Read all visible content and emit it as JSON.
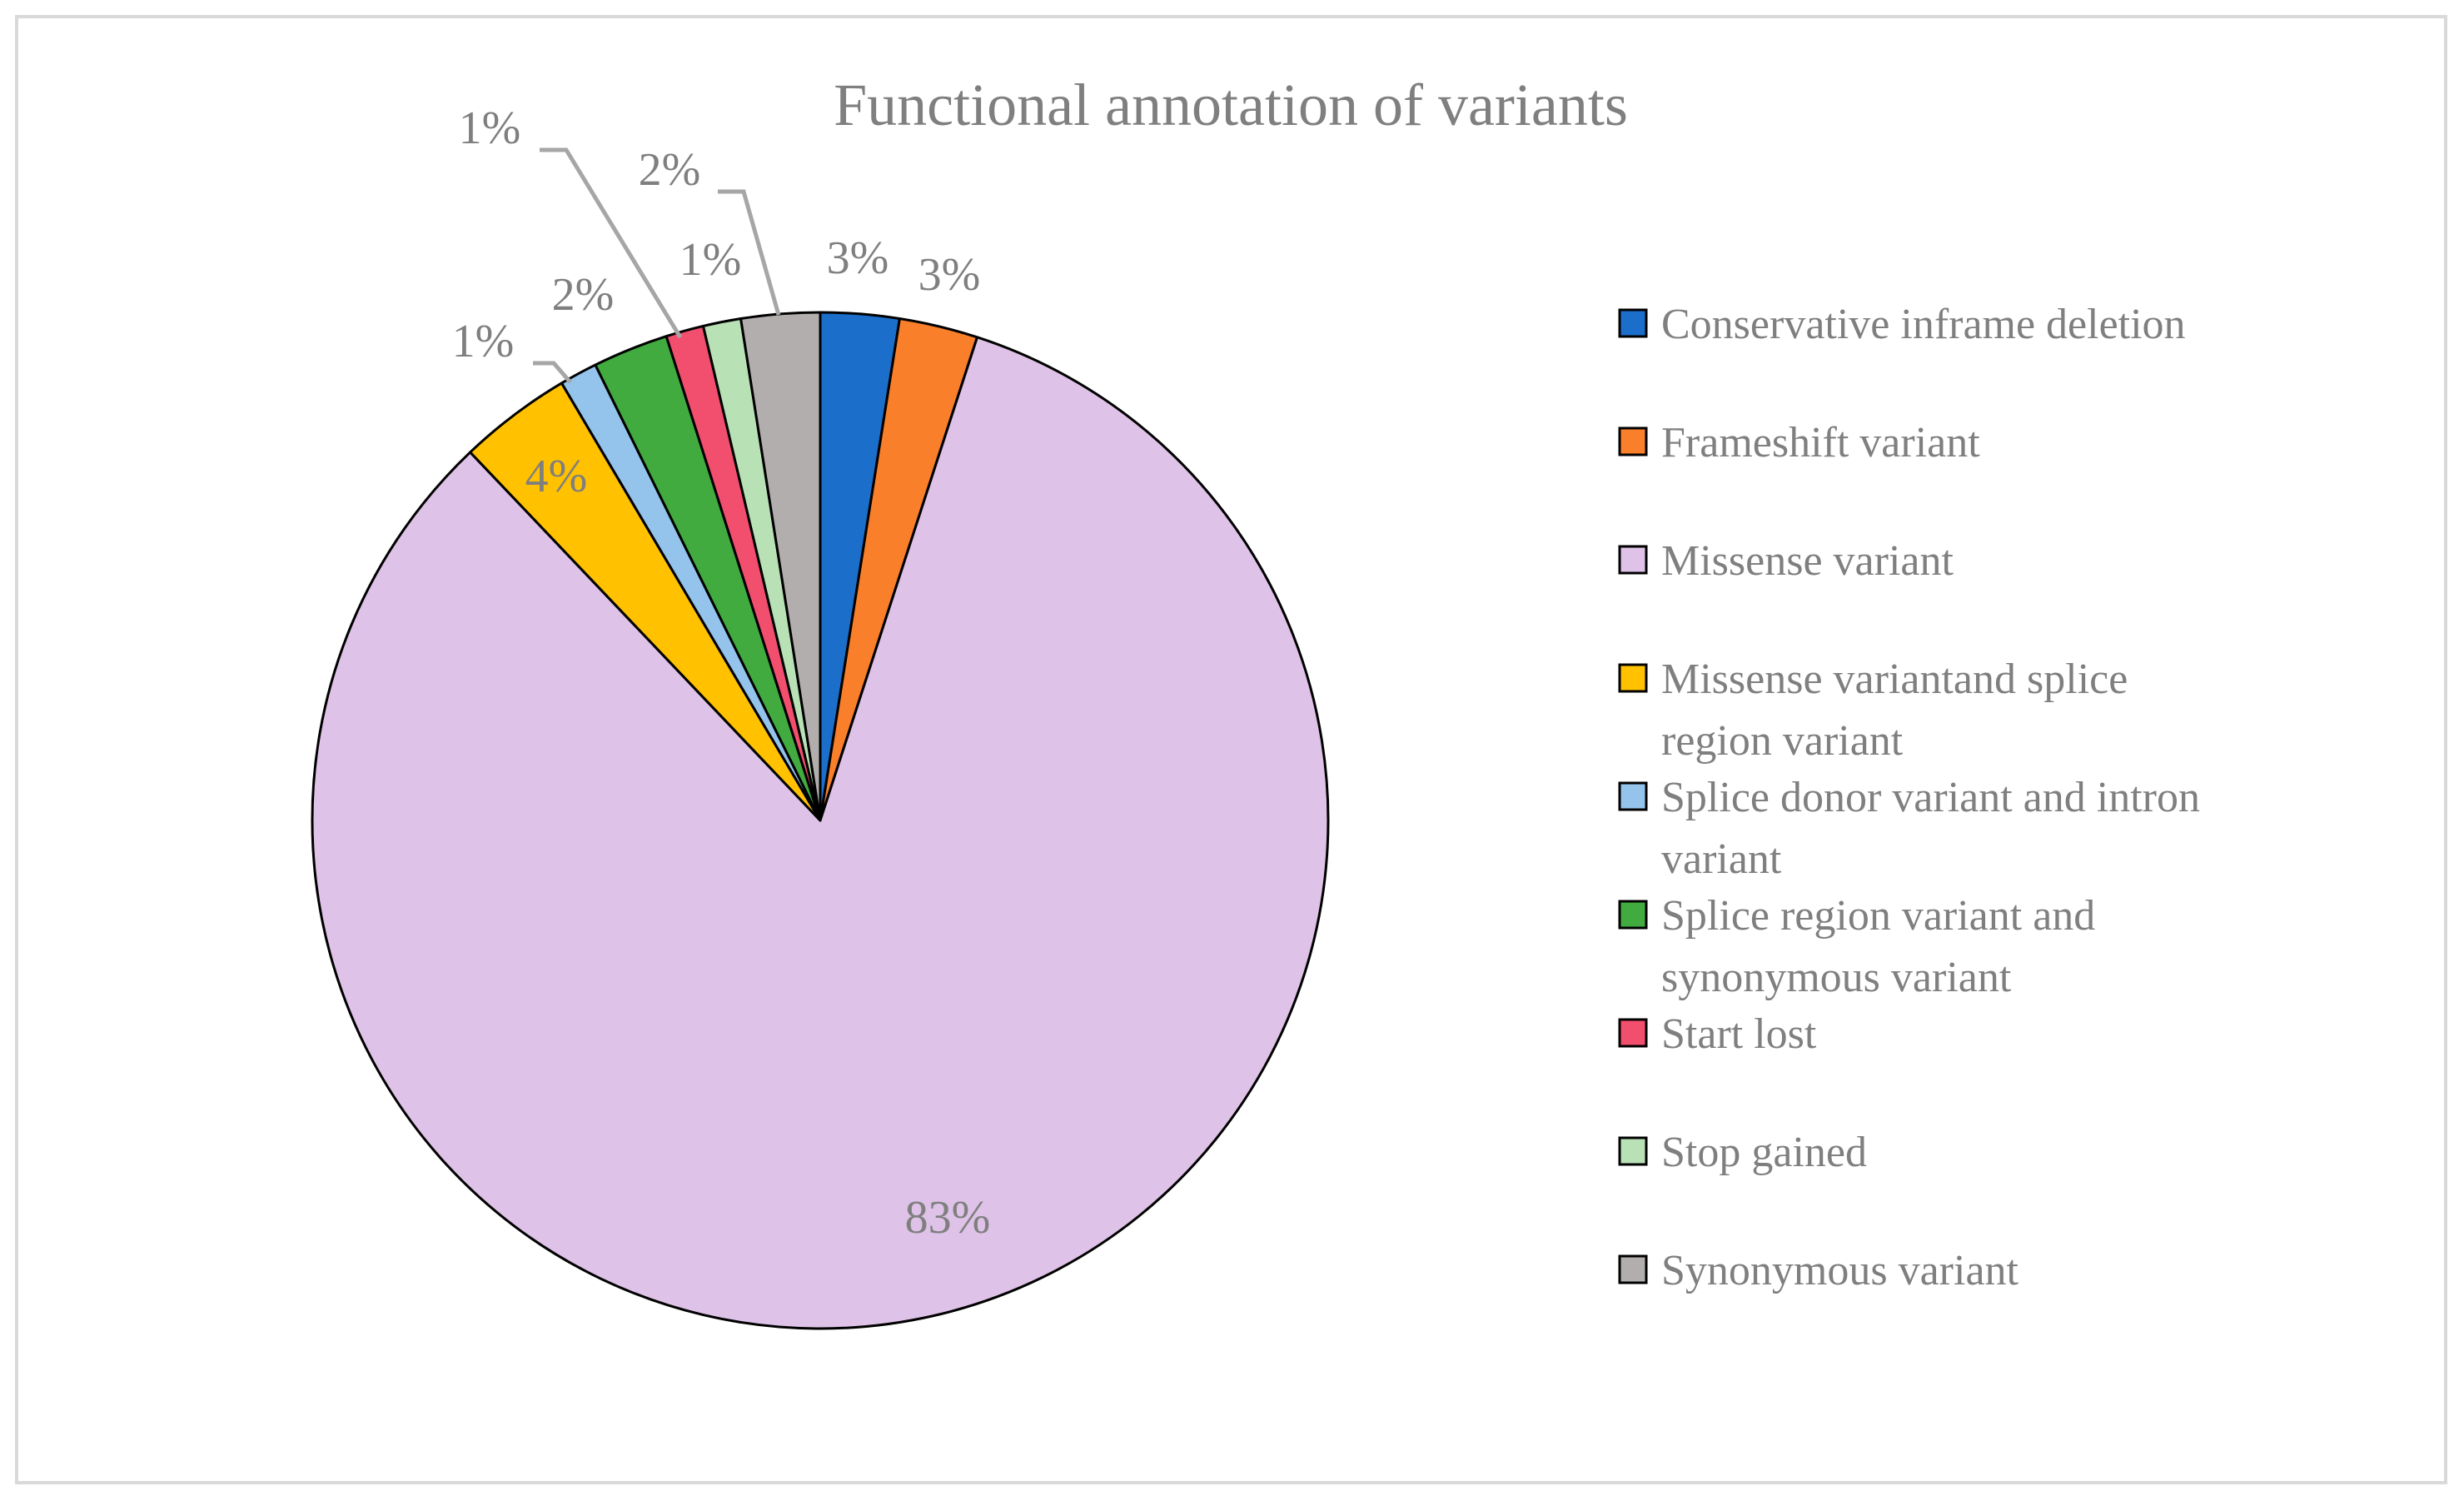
{
  "chart_data": {
    "type": "pie",
    "title": "Functional annotation of variants",
    "start_angle_deg": 0,
    "direction": "clockwise",
    "legend_position": "right",
    "slices": [
      {
        "name": "Conservative inframe deletion",
        "value": 2.5,
        "label": "3%",
        "color": "#1b6ec9"
      },
      {
        "name": "Frameshift variant",
        "value": 2.5,
        "label": "3%",
        "color": "#f97f2a"
      },
      {
        "name": "Missense variant",
        "value": 82.9,
        "label": "83%",
        "color": "#dec2e7"
      },
      {
        "name": "Missense variantand splice region variant",
        "value": 3.6,
        "label": "4%",
        "color": "#ffc100"
      },
      {
        "name": "Splice donor variant and intron variant",
        "value": 1.2,
        "label": "1%",
        "color": "#94c3ec"
      },
      {
        "name": "Splice region variant and synonymous variant",
        "value": 2.4,
        "label": "2%",
        "color": "#41ab3f"
      },
      {
        "name": "Start lost",
        "value": 1.2,
        "label": "1%",
        "color": "#f24e6e"
      },
      {
        "name": "Stop gained",
        "value": 1.2,
        "label": "1%",
        "color": "#b9e1b6"
      },
      {
        "name": "Synonymous variant",
        "value": 2.5,
        "label": "2%",
        "color": "#b2aeae"
      }
    ],
    "legend_lines": [
      [
        "Conservative inframe deletion"
      ],
      [
        "Frameshift variant"
      ],
      [
        "Missense variant"
      ],
      [
        "Missense variantand splice",
        "region variant"
      ],
      [
        "Splice donor variant and intron",
        "variant"
      ],
      [
        "Splice region variant and",
        "synonymous variant"
      ],
      [
        "Start lost"
      ],
      [
        "Stop gained"
      ],
      [
        "Synonymous variant"
      ]
    ]
  }
}
